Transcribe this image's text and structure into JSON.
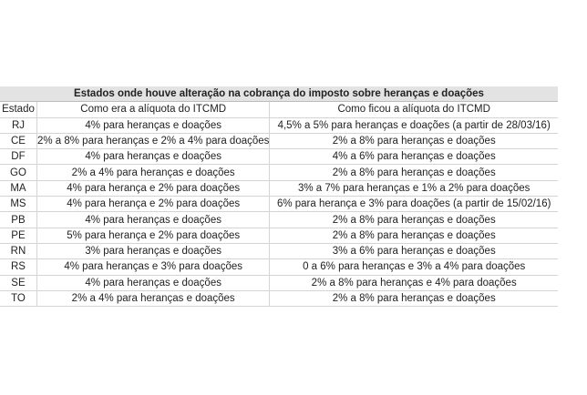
{
  "title": "Estados onde houve alteração na cobrança do imposto sobre heranças e doações",
  "headers": [
    "Estado",
    "Como era a alíquota do ITCMD",
    "Como ficou a alíquota do ITCMD"
  ],
  "rows": [
    [
      "RJ",
      "4% para heranças e doações",
      "4,5% a 5% para heranças e doações (a partir de 28/03/16)"
    ],
    [
      "CE",
      "2% a 8% para heranças e 2% a 4% para doações",
      "2% a 8% para heranças e doações"
    ],
    [
      "DF",
      "4% para heranças e doações",
      "4% a 6% para heranças e doações"
    ],
    [
      "GO",
      "2% a 4% para heranças e doações",
      "2% a 8% para heranças e doações"
    ],
    [
      "MA",
      "4% para herança e 2% para doações",
      "3% a 7% para heranças e 1% a 2% para doações"
    ],
    [
      "MS",
      "4% para herança e 2% para doações",
      "6% para herança e 3% para doações (a partir de 15/02/16)"
    ],
    [
      "PB",
      "4% para heranças e doações",
      "2% a 8% para heranças e doações"
    ],
    [
      "PE",
      "5% para herança e 2% para doações",
      "2% a 8% para heranças e doações"
    ],
    [
      "RN",
      "3% para heranças e doações",
      "3% a 6% para heranças e doações"
    ],
    [
      "RS",
      "4% para heranças e 3% para doações",
      "0 a 6% para heranças e 3% a 4% para doações"
    ],
    [
      "SE",
      "4% para heranças e doações",
      "2% a 8% para heranças e 4% para doações"
    ],
    [
      "TO",
      "2% a 4% para heranças e doações",
      "2% a 8% para heranças e doações"
    ]
  ]
}
